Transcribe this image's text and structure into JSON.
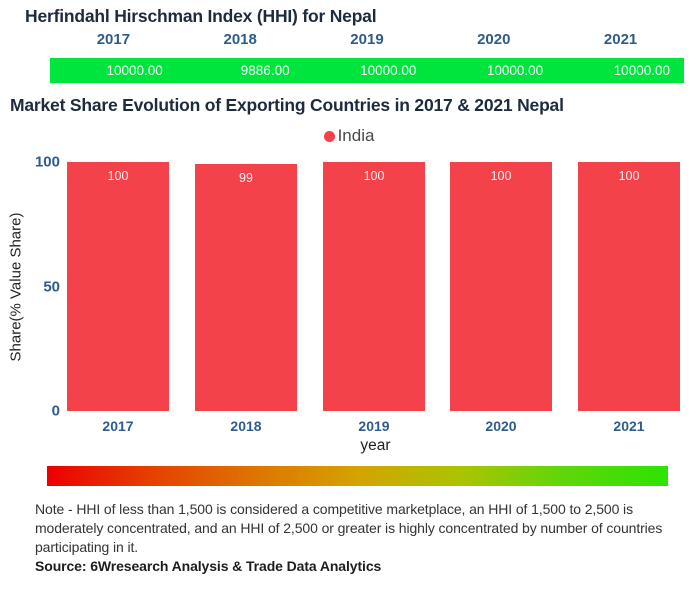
{
  "chart_data": [
    {
      "type": "table",
      "title": "Herfindahl Hirschman Index (HHI) for Nepal",
      "categories": [
        "2017",
        "2018",
        "2019",
        "2020",
        "2021"
      ],
      "values": [
        10000.0,
        9886.0,
        10000.0,
        10000.0,
        10000.0
      ],
      "value_labels": [
        "10000.00",
        "9886.00",
        "10000.00",
        "10000.00",
        "10000.00"
      ],
      "bar_color": "#00E53E",
      "label_color": "#2D5C8C"
    },
    {
      "type": "bar",
      "title": "Market Share Evolution of Exporting Countries in 2017 & 2021 Nepal",
      "categories": [
        "2017",
        "2018",
        "2019",
        "2020",
        "2021"
      ],
      "series": [
        {
          "name": "India",
          "values": [
            100,
            99,
            100,
            100,
            100
          ],
          "color": "#F4424A"
        }
      ],
      "xlabel": "year",
      "ylabel": "Share(% Value Share)",
      "ylim": [
        0,
        100
      ],
      "yticks": [
        0,
        50,
        100
      ],
      "grid": false,
      "legend_position": "top-center",
      "bar_color": "#F4424A",
      "tick_color": "#2D5C8C"
    }
  ],
  "footer": {
    "note": "Note - HHI of less than 1,500 is considered a competitive marketplace, an HHI of 1,500 to 2,500 is moderately concentrated, and an HHI of 2,500 or greater is highly concentrated by number of countries participating in it.",
    "source": "Source: 6Wresearch Analysis & Trade Data Analytics",
    "gradient_colors": [
      "#EC0000",
      "#E54000",
      "#DE7400",
      "#D4A300",
      "#ABC400",
      "#5FD60B",
      "#2CE400"
    ]
  },
  "colors": {
    "title": "#1E2B3C",
    "year_label": "#2D5C8C",
    "hhi_bar_green": "#00E53E",
    "india_bar_red": "#F4424A",
    "legend_text": "#4A4A4A",
    "note_text": "#333333"
  }
}
